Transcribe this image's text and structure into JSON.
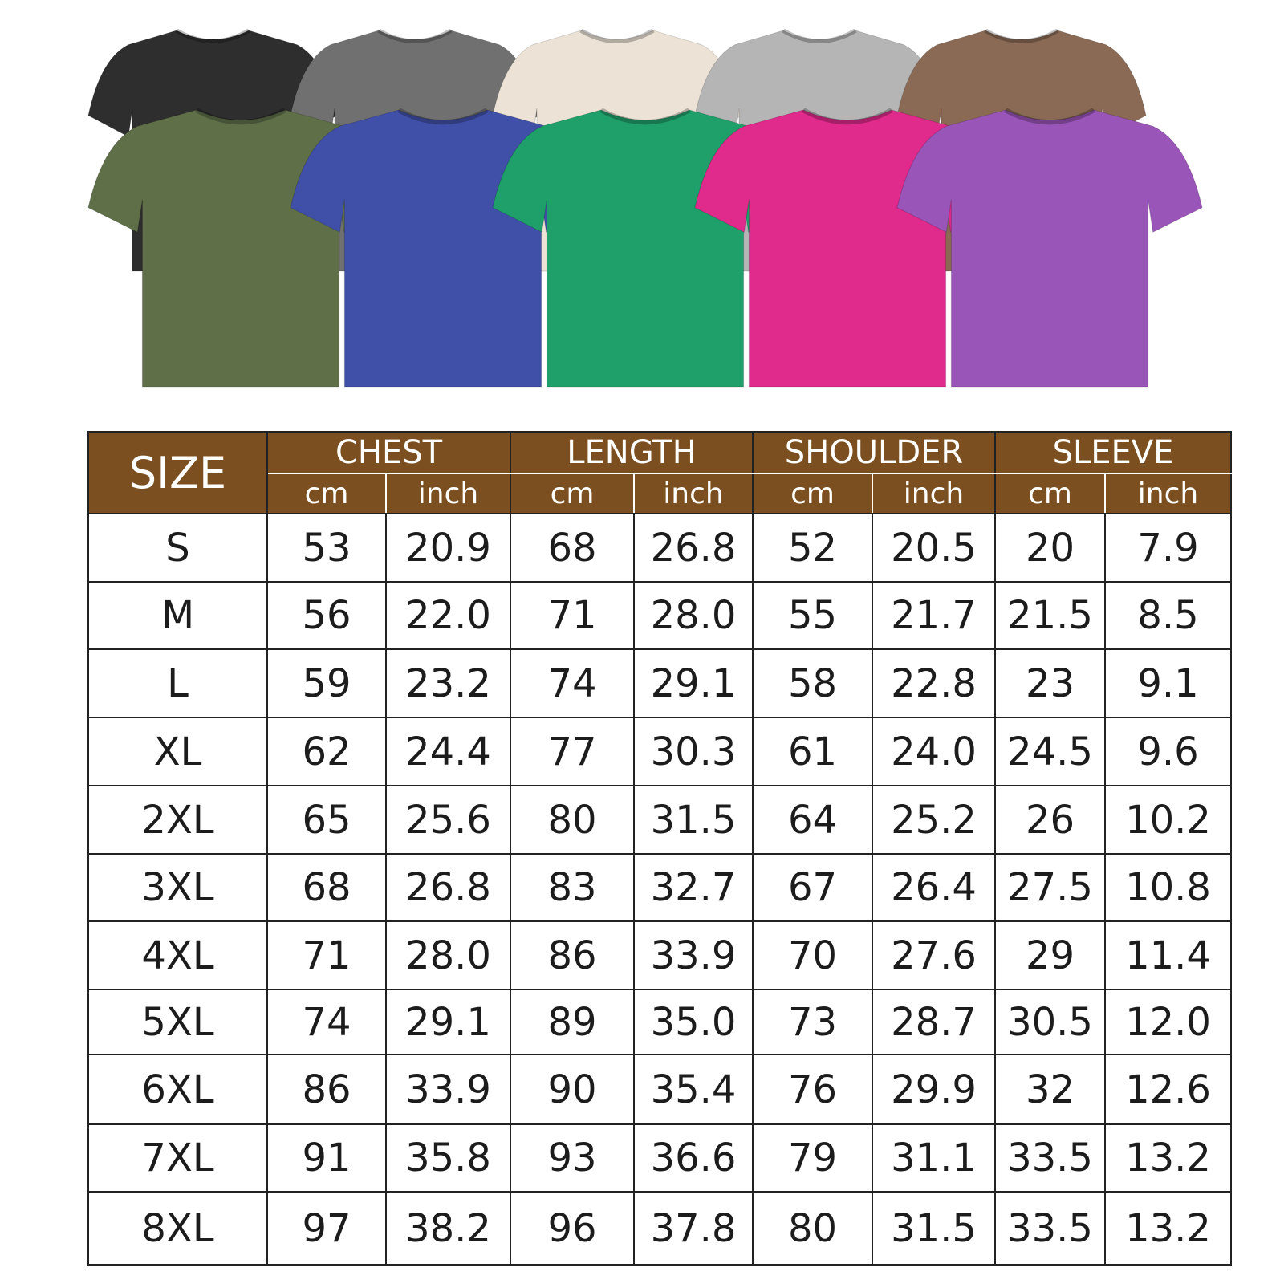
{
  "shirt_colors": {
    "back_row": [
      {
        "name": "black",
        "hex": "#2e2e2e"
      },
      {
        "name": "dark-grey",
        "hex": "#707070"
      },
      {
        "name": "cream",
        "hex": "#ece3d6"
      },
      {
        "name": "light-grey",
        "hex": "#b5b5b5"
      },
      {
        "name": "brown",
        "hex": "#8a6a55"
      }
    ],
    "front_row": [
      {
        "name": "olive",
        "hex": "#5f6f48"
      },
      {
        "name": "blue",
        "hex": "#4050a8"
      },
      {
        "name": "green",
        "hex": "#1fa06a"
      },
      {
        "name": "pink",
        "hex": "#e02a8c"
      },
      {
        "name": "purple",
        "hex": "#9a55b8"
      }
    ]
  },
  "table": {
    "header_color": "#7b4f1f",
    "size_label": "SIZE",
    "groups": [
      "CHEST",
      "LENGTH",
      "SHOULDER",
      "SLEEVE"
    ],
    "units": [
      "cm",
      "inch"
    ],
    "rows": [
      [
        "S",
        "53",
        "20.9",
        "68",
        "26.8",
        "52",
        "20.5",
        "20",
        "7.9"
      ],
      [
        "M",
        "56",
        "22.0",
        "71",
        "28.0",
        "55",
        "21.7",
        "21.5",
        "8.5"
      ],
      [
        "L",
        "59",
        "23.2",
        "74",
        "29.1",
        "58",
        "22.8",
        "23",
        "9.1"
      ],
      [
        "XL",
        "62",
        "24.4",
        "77",
        "30.3",
        "61",
        "24.0",
        "24.5",
        "9.6"
      ],
      [
        "2XL",
        "65",
        "25.6",
        "80",
        "31.5",
        "64",
        "25.2",
        "26",
        "10.2"
      ],
      [
        "3XL",
        "68",
        "26.8",
        "83",
        "32.7",
        "67",
        "26.4",
        "27.5",
        "10.8"
      ],
      [
        "4XL",
        "71",
        "28.0",
        "86",
        "33.9",
        "70",
        "27.6",
        "29",
        "11.4"
      ],
      [
        "5XL",
        "74",
        "29.1",
        "89",
        "35.0",
        "73",
        "28.7",
        "30.5",
        "12.0"
      ],
      [
        "6XL",
        "86",
        "33.9",
        "90",
        "35.4",
        "76",
        "29.9",
        "32",
        "12.6"
      ],
      [
        "7XL",
        "91",
        "35.8",
        "93",
        "36.6",
        "79",
        "31.1",
        "33.5",
        "13.2"
      ],
      [
        "8XL",
        "97",
        "38.2",
        "96",
        "37.8",
        "80",
        "31.5",
        "33.5",
        "13.2"
      ]
    ]
  }
}
